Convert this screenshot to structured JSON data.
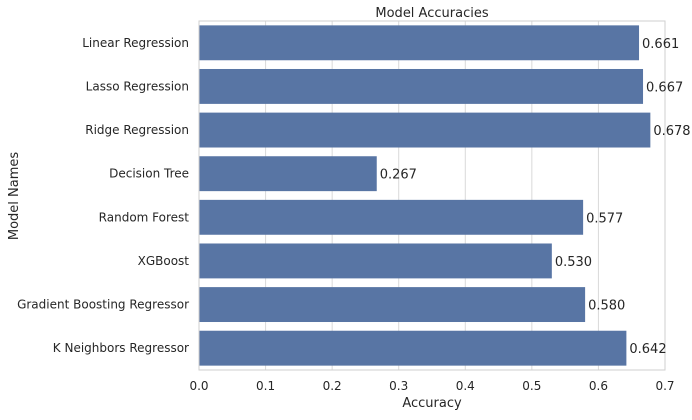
{
  "chart_data": {
    "type": "bar",
    "orientation": "horizontal",
    "title": "Model Accuracies",
    "xlabel": "Accuracy",
    "ylabel": "Model Names",
    "categories": [
      "Linear Regression",
      "Lasso Regression",
      "Ridge Regression",
      "Decision Tree",
      "Random Forest",
      "XGBoost",
      "Gradient Boosting Regressor",
      "K Neighbors Regressor"
    ],
    "values": [
      0.661,
      0.667,
      0.678,
      0.267,
      0.577,
      0.53,
      0.58,
      0.642
    ],
    "value_labels": [
      "0.661",
      "0.667",
      "0.678",
      "0.267",
      "0.577",
      "0.530",
      "0.580",
      "0.642"
    ],
    "xlim": [
      0,
      0.7
    ],
    "xticks": [
      0.0,
      0.1,
      0.2,
      0.3,
      0.4,
      0.5,
      0.6,
      0.7
    ],
    "xtick_labels": [
      "0.0",
      "0.1",
      "0.2",
      "0.3",
      "0.4",
      "0.5",
      "0.6",
      "0.7"
    ],
    "grid": "vertical",
    "colors": {
      "bar": "#5875a4",
      "grid": "#d9d9d9",
      "frame": "#cfcfcf",
      "text": "#262626"
    }
  }
}
